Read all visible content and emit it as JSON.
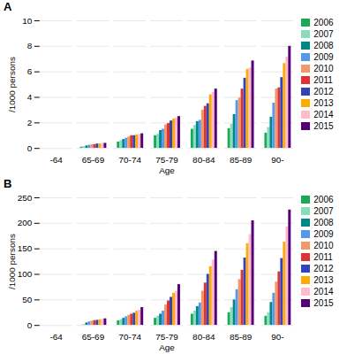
{
  "chart_data": [
    {
      "type": "bar",
      "title": "A",
      "xlabel": "Age",
      "ylabel": "/1000 persons",
      "categories": [
        "-64",
        "65-69",
        "70-74",
        "75-79",
        "80-84",
        "85-89",
        "90-"
      ],
      "series": [
        {
          "name": "2006",
          "color": "#1aaa55",
          "values": [
            0.0,
            0.1,
            0.5,
            1.0,
            1.5,
            1.55,
            1.2
          ]
        },
        {
          "name": "2007",
          "color": "#88ddbb",
          "values": [
            0.0,
            0.15,
            0.6,
            1.1,
            1.8,
            1.9,
            1.65
          ]
        },
        {
          "name": "2008",
          "color": "#008888",
          "values": [
            0.0,
            0.2,
            0.7,
            1.4,
            2.1,
            2.65,
            2.45
          ]
        },
        {
          "name": "2009",
          "color": "#5599ee",
          "values": [
            0.0,
            0.25,
            0.8,
            1.5,
            2.2,
            3.75,
            3.55
          ]
        },
        {
          "name": "2010",
          "color": "#ee9966",
          "values": [
            0.0,
            0.3,
            0.9,
            1.85,
            3.0,
            3.95,
            4.65
          ]
        },
        {
          "name": "2011",
          "color": "#dd3333",
          "values": [
            0.0,
            0.3,
            1.0,
            1.95,
            3.3,
            4.65,
            4.75
          ]
        },
        {
          "name": "2012",
          "color": "#3344bb",
          "values": [
            0.0,
            0.35,
            1.0,
            2.15,
            3.5,
            5.5,
            5.55
          ]
        },
        {
          "name": "2013",
          "color": "#ffaa00",
          "values": [
            0.0,
            0.35,
            1.05,
            2.3,
            4.2,
            6.2,
            6.65
          ]
        },
        {
          "name": "2014",
          "color": "#ffbbcc",
          "values": [
            0.0,
            0.38,
            1.1,
            2.4,
            4.4,
            6.3,
            7.15
          ]
        },
        {
          "name": "2015",
          "color": "#550077",
          "values": [
            0.0,
            0.4,
            1.15,
            2.5,
            4.65,
            6.85,
            8.0
          ]
        }
      ],
      "ylim": [
        0,
        10
      ],
      "yticks": [
        0,
        2,
        4,
        6,
        8,
        10
      ],
      "grid": true,
      "legend": "right"
    },
    {
      "type": "bar",
      "title": "B",
      "xlabel": "Age",
      "ylabel": "/1000 persons",
      "categories": [
        "-64",
        "65-69",
        "70-74",
        "75-79",
        "80-84",
        "85-89",
        "90-"
      ],
      "series": [
        {
          "name": "2006",
          "color": "#1aaa55",
          "values": [
            0.0,
            0.5,
            9.0,
            14.0,
            22.0,
            25.0,
            18.0
          ]
        },
        {
          "name": "2007",
          "color": "#88ddbb",
          "values": [
            0.0,
            2.0,
            11.0,
            18.0,
            28.0,
            35.0,
            25.0
          ]
        },
        {
          "name": "2008",
          "color": "#008888",
          "values": [
            0.0,
            5.0,
            14.0,
            22.0,
            37.0,
            50.0,
            45.0
          ]
        },
        {
          "name": "2009",
          "color": "#5599ee",
          "values": [
            0.0,
            7.0,
            17.0,
            28.0,
            44.0,
            70.0,
            63.0
          ]
        },
        {
          "name": "2010",
          "color": "#ee9966",
          "values": [
            0.0,
            8.5,
            20.0,
            40.0,
            67.0,
            90.0,
            85.0
          ]
        },
        {
          "name": "2011",
          "color": "#dd3333",
          "values": [
            0.0,
            9.5,
            22.0,
            48.0,
            83.0,
            108.0,
            105.0
          ]
        },
        {
          "name": "2012",
          "color": "#3344bb",
          "values": [
            0.0,
            10.0,
            24.0,
            55.0,
            100.0,
            132.0,
            131.0
          ]
        },
        {
          "name": "2013",
          "color": "#ffaa00",
          "values": [
            0.0,
            11.0,
            28.0,
            63.0,
            115.0,
            160.0,
            163.0
          ]
        },
        {
          "name": "2014",
          "color": "#ffbbcc",
          "values": [
            0.0,
            12.0,
            30.0,
            67.0,
            128.0,
            178.0,
            193.0
          ]
        },
        {
          "name": "2015",
          "color": "#550077",
          "values": [
            0.0,
            13.0,
            35.0,
            80.0,
            145.0,
            205.0,
            226.0
          ]
        }
      ],
      "ylim": [
        0,
        250
      ],
      "yticks": [
        0,
        50,
        100,
        150,
        200,
        250
      ],
      "grid": true,
      "legend": "right"
    }
  ]
}
